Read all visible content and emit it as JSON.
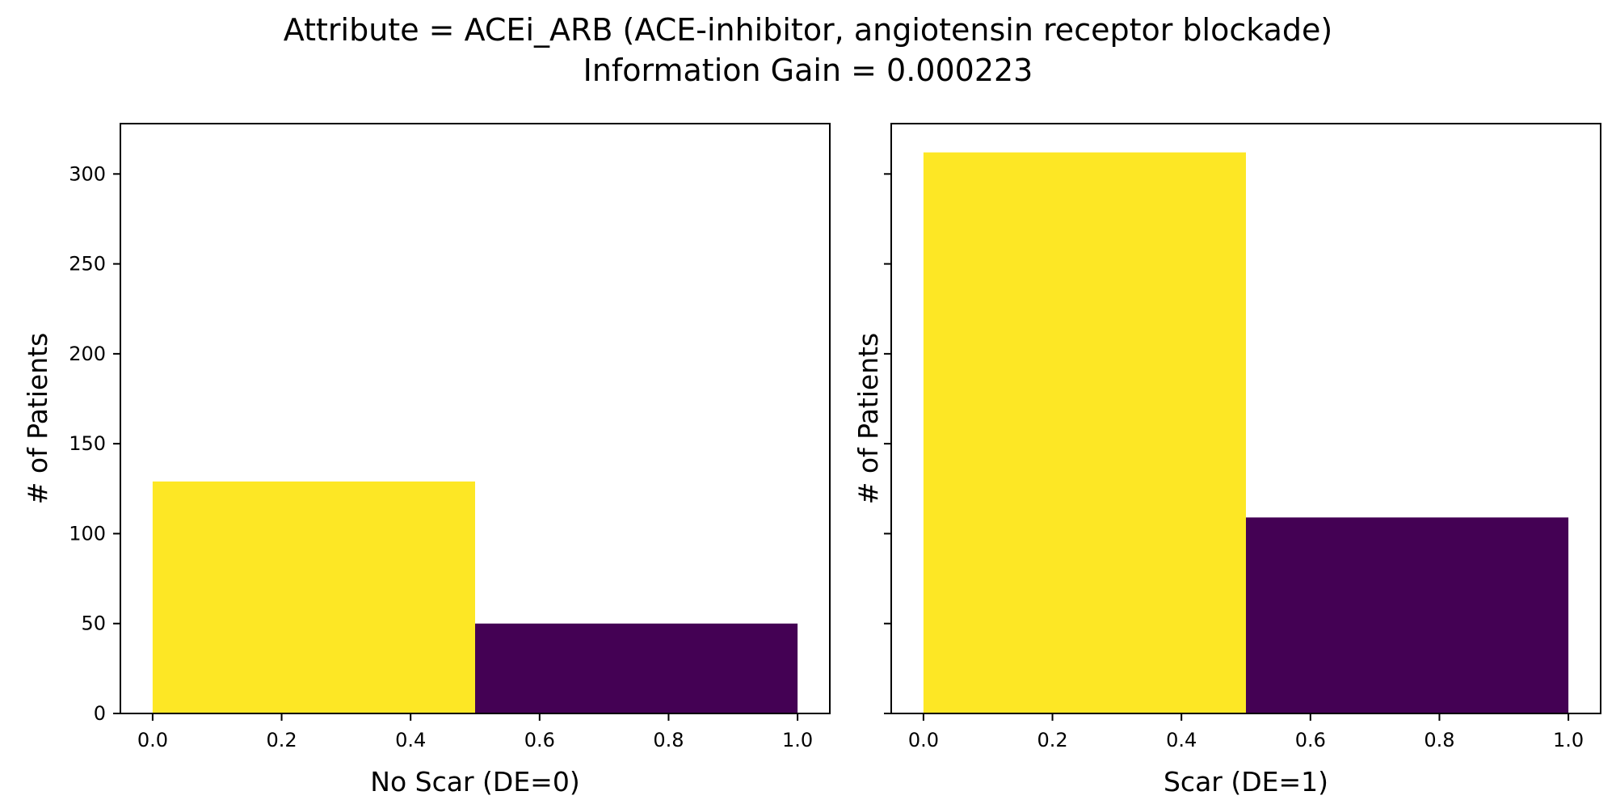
{
  "figure": {
    "title_line1": "Attribute = ACEi_ARB (ACE-inhibitor, angiotensin receptor blockade)",
    "title_line2": "Information Gain = 0.000223"
  },
  "chart_data": [
    {
      "type": "bar",
      "title": "",
      "xlabel": "No Scar (DE=0)",
      "ylabel": "# of Patients",
      "xlim": [
        -0.05,
        1.05
      ],
      "ylim": [
        0,
        328
      ],
      "xticks": [
        0.0,
        0.2,
        0.4,
        0.6,
        0.8,
        1.0
      ],
      "xtick_labels": [
        "0.0",
        "0.2",
        "0.4",
        "0.6",
        "0.8",
        "1.0"
      ],
      "yticks": [
        0,
        50,
        100,
        150,
        200,
        250,
        300
      ],
      "ytick_labels": [
        "0",
        "50",
        "100",
        "150",
        "200",
        "250",
        "300"
      ],
      "show_ytick_labels": true,
      "bins": [
        {
          "x0": 0.0,
          "x1": 0.5,
          "value": 129,
          "color": "#fde725"
        },
        {
          "x0": 0.5,
          "x1": 1.0,
          "value": 50,
          "color": "#440154"
        }
      ],
      "grid": false
    },
    {
      "type": "bar",
      "title": "",
      "xlabel": "Scar (DE=1)",
      "ylabel": "# of Patients",
      "xlim": [
        -0.05,
        1.05
      ],
      "ylim": [
        0,
        328
      ],
      "xticks": [
        0.0,
        0.2,
        0.4,
        0.6,
        0.8,
        1.0
      ],
      "xtick_labels": [
        "0.0",
        "0.2",
        "0.4",
        "0.6",
        "0.8",
        "1.0"
      ],
      "yticks": [
        0,
        50,
        100,
        150,
        200,
        250,
        300
      ],
      "ytick_labels": [
        "0",
        "50",
        "100",
        "150",
        "200",
        "250",
        "300"
      ],
      "show_ytick_labels": false,
      "bins": [
        {
          "x0": 0.0,
          "x1": 0.5,
          "value": 312,
          "color": "#fde725"
        },
        {
          "x0": 0.5,
          "x1": 1.0,
          "value": 109,
          "color": "#440154"
        }
      ],
      "grid": false
    }
  ]
}
